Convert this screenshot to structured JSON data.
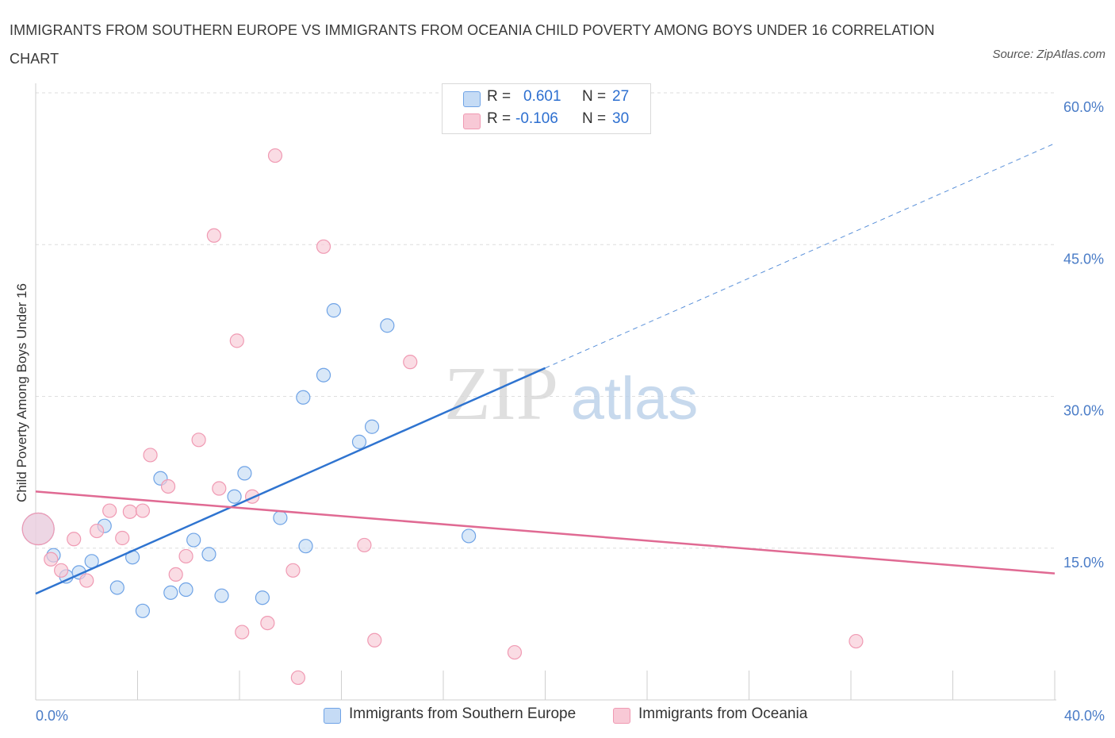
{
  "title": "IMMIGRANTS FROM SOUTHERN EUROPE VS IMMIGRANTS FROM OCEANIA CHILD POVERTY AMONG BOYS UNDER 16 CORRELATION CHART",
  "source": "Source: ZipAtlas.com",
  "watermark": {
    "zip": "ZIP",
    "atlas": "atlas"
  },
  "legend": {
    "r_label": "R =",
    "n_label": "N =",
    "rows": [
      {
        "r": "0.601",
        "n": "27"
      },
      {
        "r": "-0.106",
        "n": "30"
      }
    ]
  },
  "chart_data": {
    "type": "scatter",
    "title": "IMMIGRANTS FROM SOUTHERN EUROPE VS IMMIGRANTS FROM OCEANIA CHILD POVERTY AMONG BOYS UNDER 16 CORRELATION CHART",
    "xlabel": "",
    "ylabel": "Child Poverty Among Boys Under 16",
    "xlim": [
      0,
      40
    ],
    "ylim": [
      0,
      60
    ],
    "x_tick_labels": [
      "0.0%",
      "40.0%"
    ],
    "y_ticks": [
      {
        "value": 15,
        "label": "15.0%"
      },
      {
        "value": 30,
        "label": "30.0%"
      },
      {
        "value": 45,
        "label": "45.0%"
      },
      {
        "value": 60,
        "label": "60.0%"
      }
    ],
    "grid": true,
    "series": [
      {
        "name": "Immigrants from Southern Europe",
        "color": "#6fa3e6",
        "fill": "#c5dbf5",
        "trend_color": "#2f74d0",
        "r": 0.601,
        "n": 27,
        "trend": {
          "x0": 0,
          "y0": 10.5,
          "x1": 20,
          "y1": 32.8,
          "dashed_to_x": 40,
          "dashed_to_y": 55
        },
        "points": [
          {
            "x": 0.1,
            "y": 16.9,
            "big": true
          },
          {
            "x": 0.7,
            "y": 14.3
          },
          {
            "x": 1.2,
            "y": 12.2
          },
          {
            "x": 1.7,
            "y": 12.6
          },
          {
            "x": 2.2,
            "y": 13.7
          },
          {
            "x": 2.7,
            "y": 17.2
          },
          {
            "x": 3.2,
            "y": 11.1
          },
          {
            "x": 3.8,
            "y": 14.1
          },
          {
            "x": 4.2,
            "y": 8.8
          },
          {
            "x": 4.9,
            "y": 21.9
          },
          {
            "x": 5.3,
            "y": 10.6
          },
          {
            "x": 5.9,
            "y": 10.9
          },
          {
            "x": 6.2,
            "y": 15.8
          },
          {
            "x": 6.8,
            "y": 14.4
          },
          {
            "x": 7.3,
            "y": 10.3
          },
          {
            "x": 7.8,
            "y": 20.1
          },
          {
            "x": 8.2,
            "y": 22.4
          },
          {
            "x": 8.9,
            "y": 10.1
          },
          {
            "x": 9.6,
            "y": 18.0
          },
          {
            "x": 10.5,
            "y": 29.9
          },
          {
            "x": 10.6,
            "y": 15.2
          },
          {
            "x": 11.3,
            "y": 32.1
          },
          {
            "x": 11.7,
            "y": 38.5
          },
          {
            "x": 12.7,
            "y": 25.5
          },
          {
            "x": 13.2,
            "y": 27.0
          },
          {
            "x": 13.8,
            "y": 37.0
          },
          {
            "x": 17.0,
            "y": 16.2
          }
        ]
      },
      {
        "name": "Immigrants from Oceania",
        "color": "#f09ab3",
        "fill": "#f8c9d6",
        "trend_color": "#e06a93",
        "r": -0.106,
        "n": 30,
        "trend": {
          "x0": 0,
          "y0": 20.6,
          "x1": 40,
          "y1": 12.5
        },
        "points": [
          {
            "x": 0.1,
            "y": 16.9,
            "big": true
          },
          {
            "x": 0.6,
            "y": 13.9
          },
          {
            "x": 1.0,
            "y": 12.8
          },
          {
            "x": 1.5,
            "y": 15.9
          },
          {
            "x": 2.0,
            "y": 11.8
          },
          {
            "x": 2.4,
            "y": 16.7
          },
          {
            "x": 2.9,
            "y": 18.7
          },
          {
            "x": 3.4,
            "y": 16.0
          },
          {
            "x": 3.7,
            "y": 18.6
          },
          {
            "x": 4.2,
            "y": 18.7
          },
          {
            "x": 4.5,
            "y": 24.2
          },
          {
            "x": 5.2,
            "y": 21.1
          },
          {
            "x": 5.5,
            "y": 12.4
          },
          {
            "x": 5.9,
            "y": 14.2
          },
          {
            "x": 6.4,
            "y": 25.7
          },
          {
            "x": 7.0,
            "y": 45.9
          },
          {
            "x": 7.2,
            "y": 20.9
          },
          {
            "x": 7.9,
            "y": 35.5
          },
          {
            "x": 8.1,
            "y": 6.7
          },
          {
            "x": 8.5,
            "y": 20.1
          },
          {
            "x": 9.1,
            "y": 7.6
          },
          {
            "x": 9.4,
            "y": 53.8
          },
          {
            "x": 10.1,
            "y": 12.8
          },
          {
            "x": 10.3,
            "y": 2.2
          },
          {
            "x": 11.3,
            "y": 44.8
          },
          {
            "x": 12.9,
            "y": 15.3
          },
          {
            "x": 13.3,
            "y": 5.9
          },
          {
            "x": 14.7,
            "y": 33.4
          },
          {
            "x": 18.8,
            "y": 4.7
          },
          {
            "x": 32.2,
            "y": 5.8
          }
        ]
      }
    ]
  }
}
